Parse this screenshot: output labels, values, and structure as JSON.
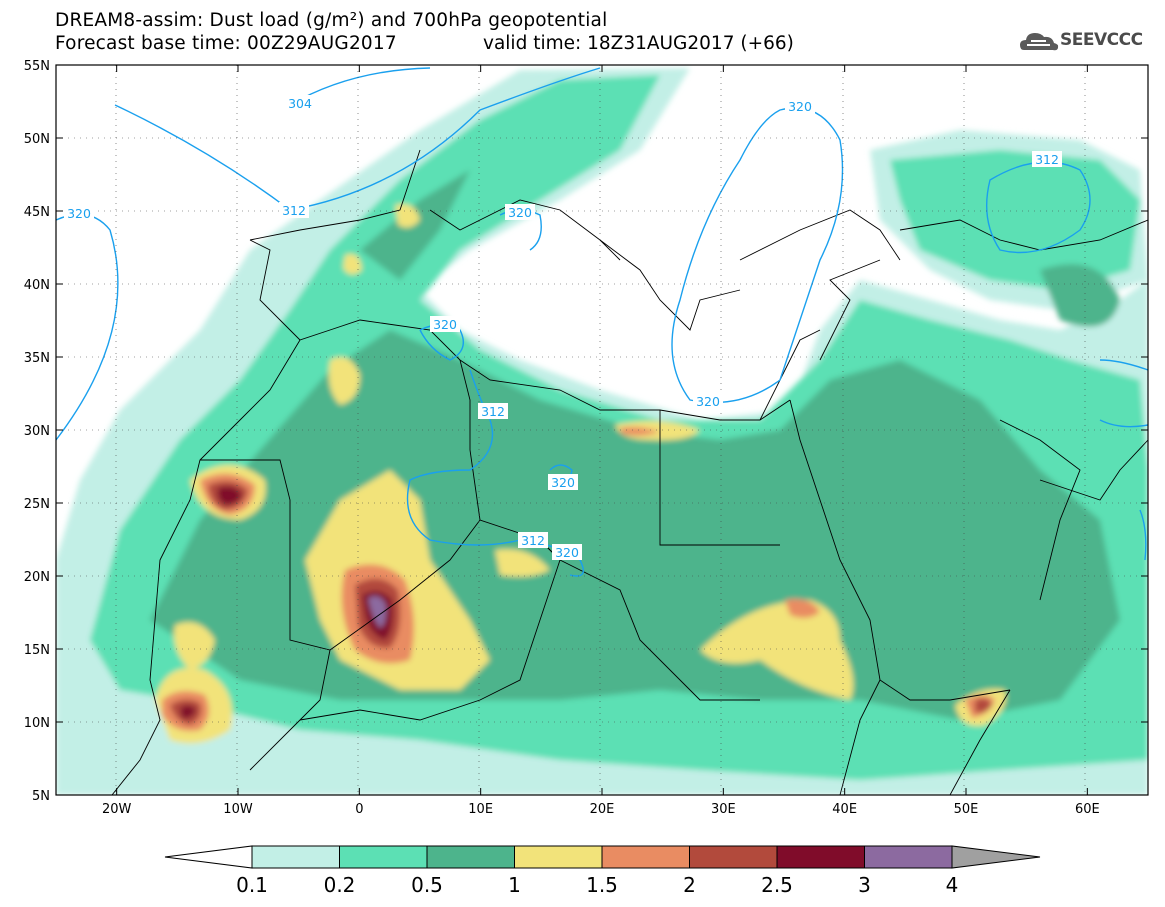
{
  "header": {
    "title_line1": "DREAM8-assim: Dust load (g/m²) and 700hPa geopotential",
    "base_time": "Forecast base time: 00Z29AUG2017",
    "valid_time": "valid time: 18Z31AUG2017 (+66)"
  },
  "logo": {
    "text": "SEEVCCC",
    "icon": "cloud-logo-icon"
  },
  "map": {
    "lon_range": [
      -25,
      65
    ],
    "lat_range": [
      5,
      55
    ],
    "lat_ticks": [
      "55N",
      "50N",
      "45N",
      "40N",
      "35N",
      "30N",
      "25N",
      "20N",
      "15N",
      "10N",
      "5N"
    ],
    "lon_ticks": [
      "20W",
      "10W",
      "0",
      "10E",
      "20E",
      "30E",
      "40E",
      "50E",
      "60E"
    ],
    "contour_labels": [
      "304",
      "312",
      "312",
      "320",
      "320",
      "320",
      "320",
      "320",
      "320",
      "312",
      "320",
      "312"
    ]
  },
  "colorbar": {
    "labels": [
      "0.1",
      "0.2",
      "0.5",
      "1",
      "1.5",
      "2",
      "2.5",
      "3",
      "4"
    ],
    "colors": [
      "#c2efe6",
      "#5ce0b4",
      "#4db48c",
      "#f2e37a",
      "#e98c62",
      "#b24a3c",
      "#800c2a",
      "#8c6aa0"
    ],
    "below_color": "#ffffff",
    "above_color": "#a0a0a0"
  }
}
